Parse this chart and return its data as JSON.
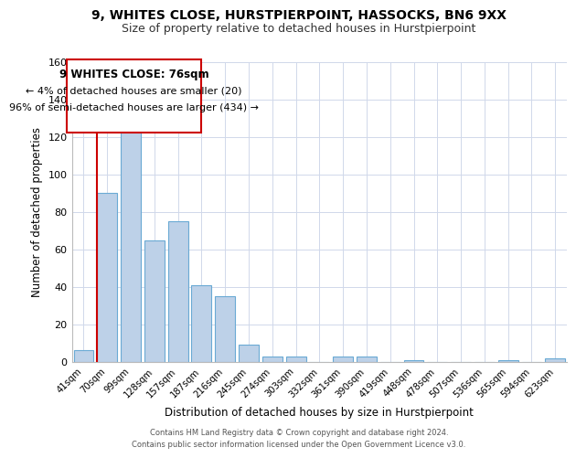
{
  "title1": "9, WHITES CLOSE, HURSTPIERPOINT, HASSOCKS, BN6 9XX",
  "title2": "Size of property relative to detached houses in Hurstpierpoint",
  "xlabel": "Distribution of detached houses by size in Hurstpierpoint",
  "ylabel": "Number of detached properties",
  "bar_labels": [
    "41sqm",
    "70sqm",
    "99sqm",
    "128sqm",
    "157sqm",
    "187sqm",
    "216sqm",
    "245sqm",
    "274sqm",
    "303sqm",
    "332sqm",
    "361sqm",
    "390sqm",
    "419sqm",
    "448sqm",
    "478sqm",
    "507sqm",
    "536sqm",
    "565sqm",
    "594sqm",
    "623sqm"
  ],
  "bar_values": [
    6,
    90,
    128,
    65,
    75,
    41,
    35,
    9,
    3,
    3,
    0,
    3,
    3,
    0,
    1,
    0,
    0,
    0,
    1,
    0,
    2
  ],
  "bar_color": "#bdd1e8",
  "bar_edge_color": "#6aaad4",
  "ylim": [
    0,
    160
  ],
  "yticks": [
    0,
    20,
    40,
    60,
    80,
    100,
    120,
    140,
    160
  ],
  "annotation_title": "9 WHITES CLOSE: 76sqm",
  "annotation_line1": "← 4% of detached houses are smaller (20)",
  "annotation_line2": "96% of semi-detached houses are larger (434) →",
  "property_line_color": "#cc0000",
  "annotation_box_edge_color": "#cc0000",
  "title1_fontsize": 10,
  "title2_fontsize": 9,
  "footnote1": "Contains HM Land Registry data © Crown copyright and database right 2024.",
  "footnote2": "Contains public sector information licensed under the Open Government Licence v3.0.",
  "grid_color": "#d0d8ea",
  "property_line_xindex": 1.0
}
